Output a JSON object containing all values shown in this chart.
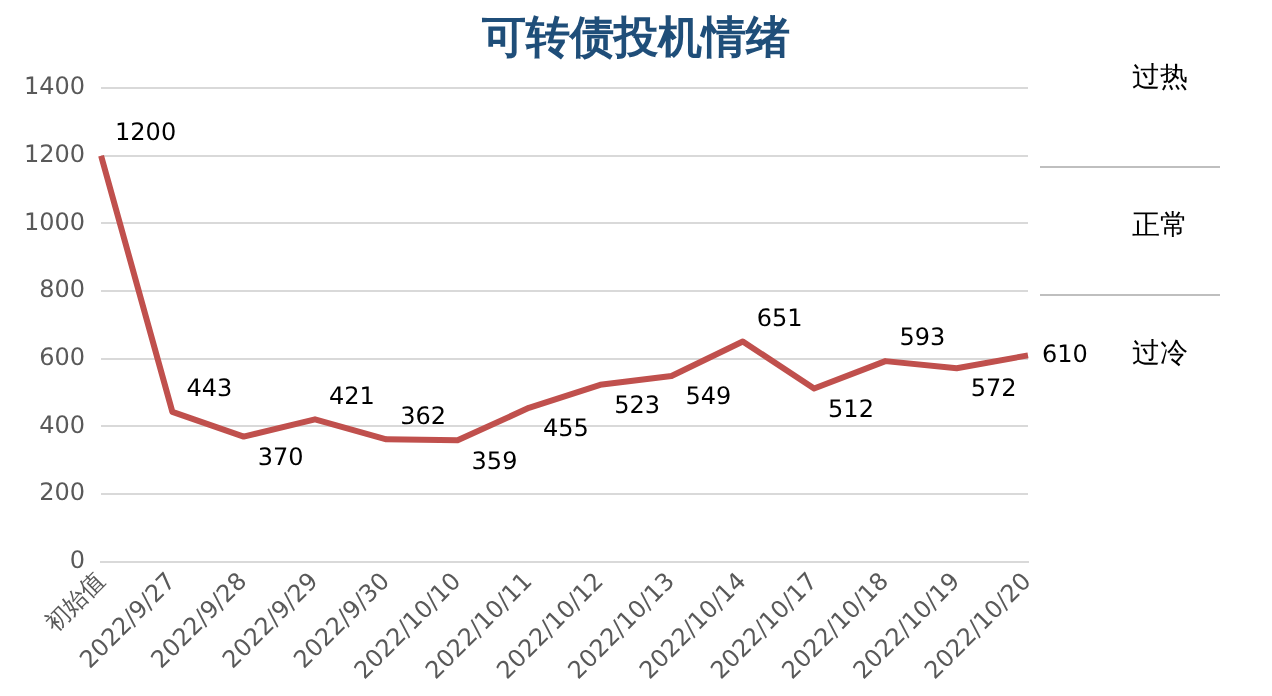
{
  "chart_data": {
    "type": "line",
    "title": "可转债投机情绪",
    "categories": [
      "初始值",
      "2022/9/27",
      "2022/9/28",
      "2022/9/29",
      "2022/9/30",
      "2022/10/10",
      "2022/10/11",
      "2022/10/12",
      "2022/10/13",
      "2022/10/14",
      "2022/10/17",
      "2022/10/18",
      "2022/10/19",
      "2022/10/20"
    ],
    "series": [
      {
        "color": "#c0504d",
        "values": [
          1200,
          443,
          370,
          421,
          362,
          359,
          455,
          523,
          549,
          651,
          512,
          593,
          572,
          610
        ]
      }
    ],
    "ylim": [
      0,
      1400
    ],
    "yticks": [
      0,
      200,
      400,
      600,
      800,
      1000,
      1200,
      1400
    ],
    "grid": "y",
    "legend": false,
    "marker": "none",
    "line_style": "solid",
    "data_labels": true,
    "annotations": [
      "过热",
      "正常",
      "过冷"
    ]
  }
}
